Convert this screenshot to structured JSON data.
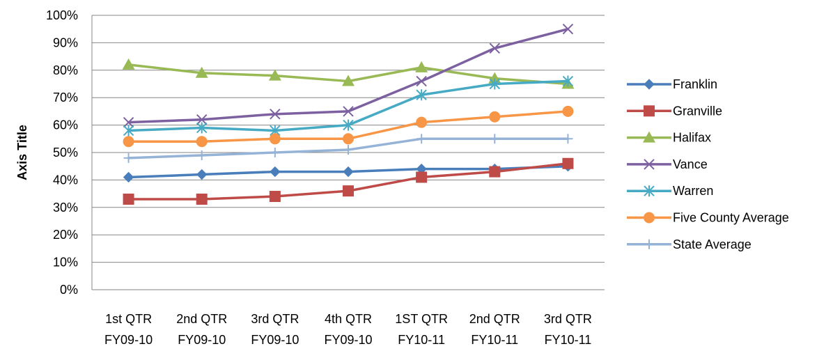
{
  "chart_data": {
    "type": "line",
    "title": "",
    "xlabel": "",
    "ylabel": "Axis Title",
    "ylim": [
      0,
      1
    ],
    "y_tick_step": 0.1,
    "y_ticks": [
      "0%",
      "10%",
      "20%",
      "30%",
      "40%",
      "50%",
      "60%",
      "70%",
      "80%",
      "90%",
      "100%"
    ],
    "grid": "horizontal",
    "legend_position": "right",
    "categories": [
      [
        "1st QTR",
        "FY09-10"
      ],
      [
        "2nd QTR",
        "FY09-10"
      ],
      [
        "3rd QTR",
        "FY09-10"
      ],
      [
        "4th QTR",
        "FY09-10"
      ],
      [
        "1ST QTR",
        "FY10-11"
      ],
      [
        "2nd QTR",
        "FY10-11"
      ],
      [
        "3rd QTR",
        "FY10-11"
      ]
    ],
    "series": [
      {
        "name": "Franklin",
        "color": "#4a7ebb",
        "marker": "diamond",
        "values": [
          0.41,
          0.42,
          0.43,
          0.43,
          0.44,
          0.44,
          0.45
        ]
      },
      {
        "name": "Granville",
        "color": "#be4b48",
        "marker": "square",
        "values": [
          0.33,
          0.33,
          0.34,
          0.36,
          0.41,
          0.43,
          0.46
        ]
      },
      {
        "name": "Halifax",
        "color": "#98b954",
        "marker": "triangle",
        "values": [
          0.82,
          0.79,
          0.78,
          0.76,
          0.81,
          0.77,
          0.75
        ]
      },
      {
        "name": "Vance",
        "color": "#7d60a0",
        "marker": "x",
        "values": [
          0.61,
          0.62,
          0.64,
          0.65,
          0.76,
          0.88,
          0.95
        ]
      },
      {
        "name": "Warren",
        "color": "#46aac5",
        "marker": "asterisk",
        "values": [
          0.58,
          0.59,
          0.58,
          0.6,
          0.71,
          0.75,
          0.76
        ]
      },
      {
        "name": "Five County Average",
        "color": "#f79646",
        "marker": "circle",
        "values": [
          0.54,
          0.54,
          0.55,
          0.55,
          0.61,
          0.63,
          0.65
        ]
      },
      {
        "name": "State Average",
        "color": "#95b3d7",
        "marker": "plus",
        "values": [
          0.48,
          0.49,
          0.5,
          0.51,
          0.55,
          0.55,
          0.55
        ]
      }
    ]
  }
}
